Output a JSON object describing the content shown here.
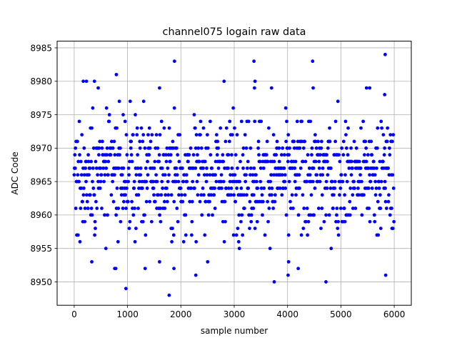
{
  "chart_data": {
    "type": "scatter",
    "title": "channel075 logain raw data",
    "xlabel": "sample number",
    "ylabel": "ADC Code",
    "xlim": [
      -320,
      6320
    ],
    "ylim": [
      8946.5,
      8986.0
    ],
    "x_ticks": [
      0,
      1000,
      2000,
      3000,
      4000,
      5000,
      6000
    ],
    "y_ticks": [
      8950,
      8955,
      8960,
      8965,
      8970,
      8975,
      8980,
      8985
    ],
    "grid": true,
    "marker_color": "#0000ff",
    "series": [
      {
        "n_samples": 6000,
        "x_start": 0,
        "x_step": 1,
        "typical_range": [
          8953,
          8977
        ],
        "center": 8966,
        "outliers": [
          {
            "x": 170,
            "y": 8980
          },
          {
            "x": 230,
            "y": 8980
          },
          {
            "x": 380,
            "y": 8980
          },
          {
            "x": 450,
            "y": 8979
          },
          {
            "x": 790,
            "y": 8981
          },
          {
            "x": 1880,
            "y": 8983
          },
          {
            "x": 1600,
            "y": 8979
          },
          {
            "x": 2810,
            "y": 8980
          },
          {
            "x": 3370,
            "y": 8983
          },
          {
            "x": 3390,
            "y": 8980
          },
          {
            "x": 3380,
            "y": 8979
          },
          {
            "x": 3700,
            "y": 8979
          },
          {
            "x": 4470,
            "y": 8983
          },
          {
            "x": 4480,
            "y": 8979
          },
          {
            "x": 5480,
            "y": 8979
          },
          {
            "x": 5540,
            "y": 8979
          },
          {
            "x": 5830,
            "y": 8984
          },
          {
            "x": 5820,
            "y": 8978
          },
          {
            "x": 970,
            "y": 8949
          },
          {
            "x": 1780,
            "y": 8948
          },
          {
            "x": 2280,
            "y": 8951
          },
          {
            "x": 3750,
            "y": 8950
          },
          {
            "x": 4010,
            "y": 8951
          },
          {
            "x": 4720,
            "y": 8950
          },
          {
            "x": 5840,
            "y": 8951
          },
          {
            "x": 760,
            "y": 8952
          },
          {
            "x": 780,
            "y": 8952
          },
          {
            "x": 1330,
            "y": 8952
          },
          {
            "x": 1870,
            "y": 8952
          },
          {
            "x": 4200,
            "y": 8952
          },
          {
            "x": 4020,
            "y": 8953
          },
          {
            "x": 330,
            "y": 8953
          },
          {
            "x": 1600,
            "y": 8953
          }
        ]
      }
    ]
  }
}
